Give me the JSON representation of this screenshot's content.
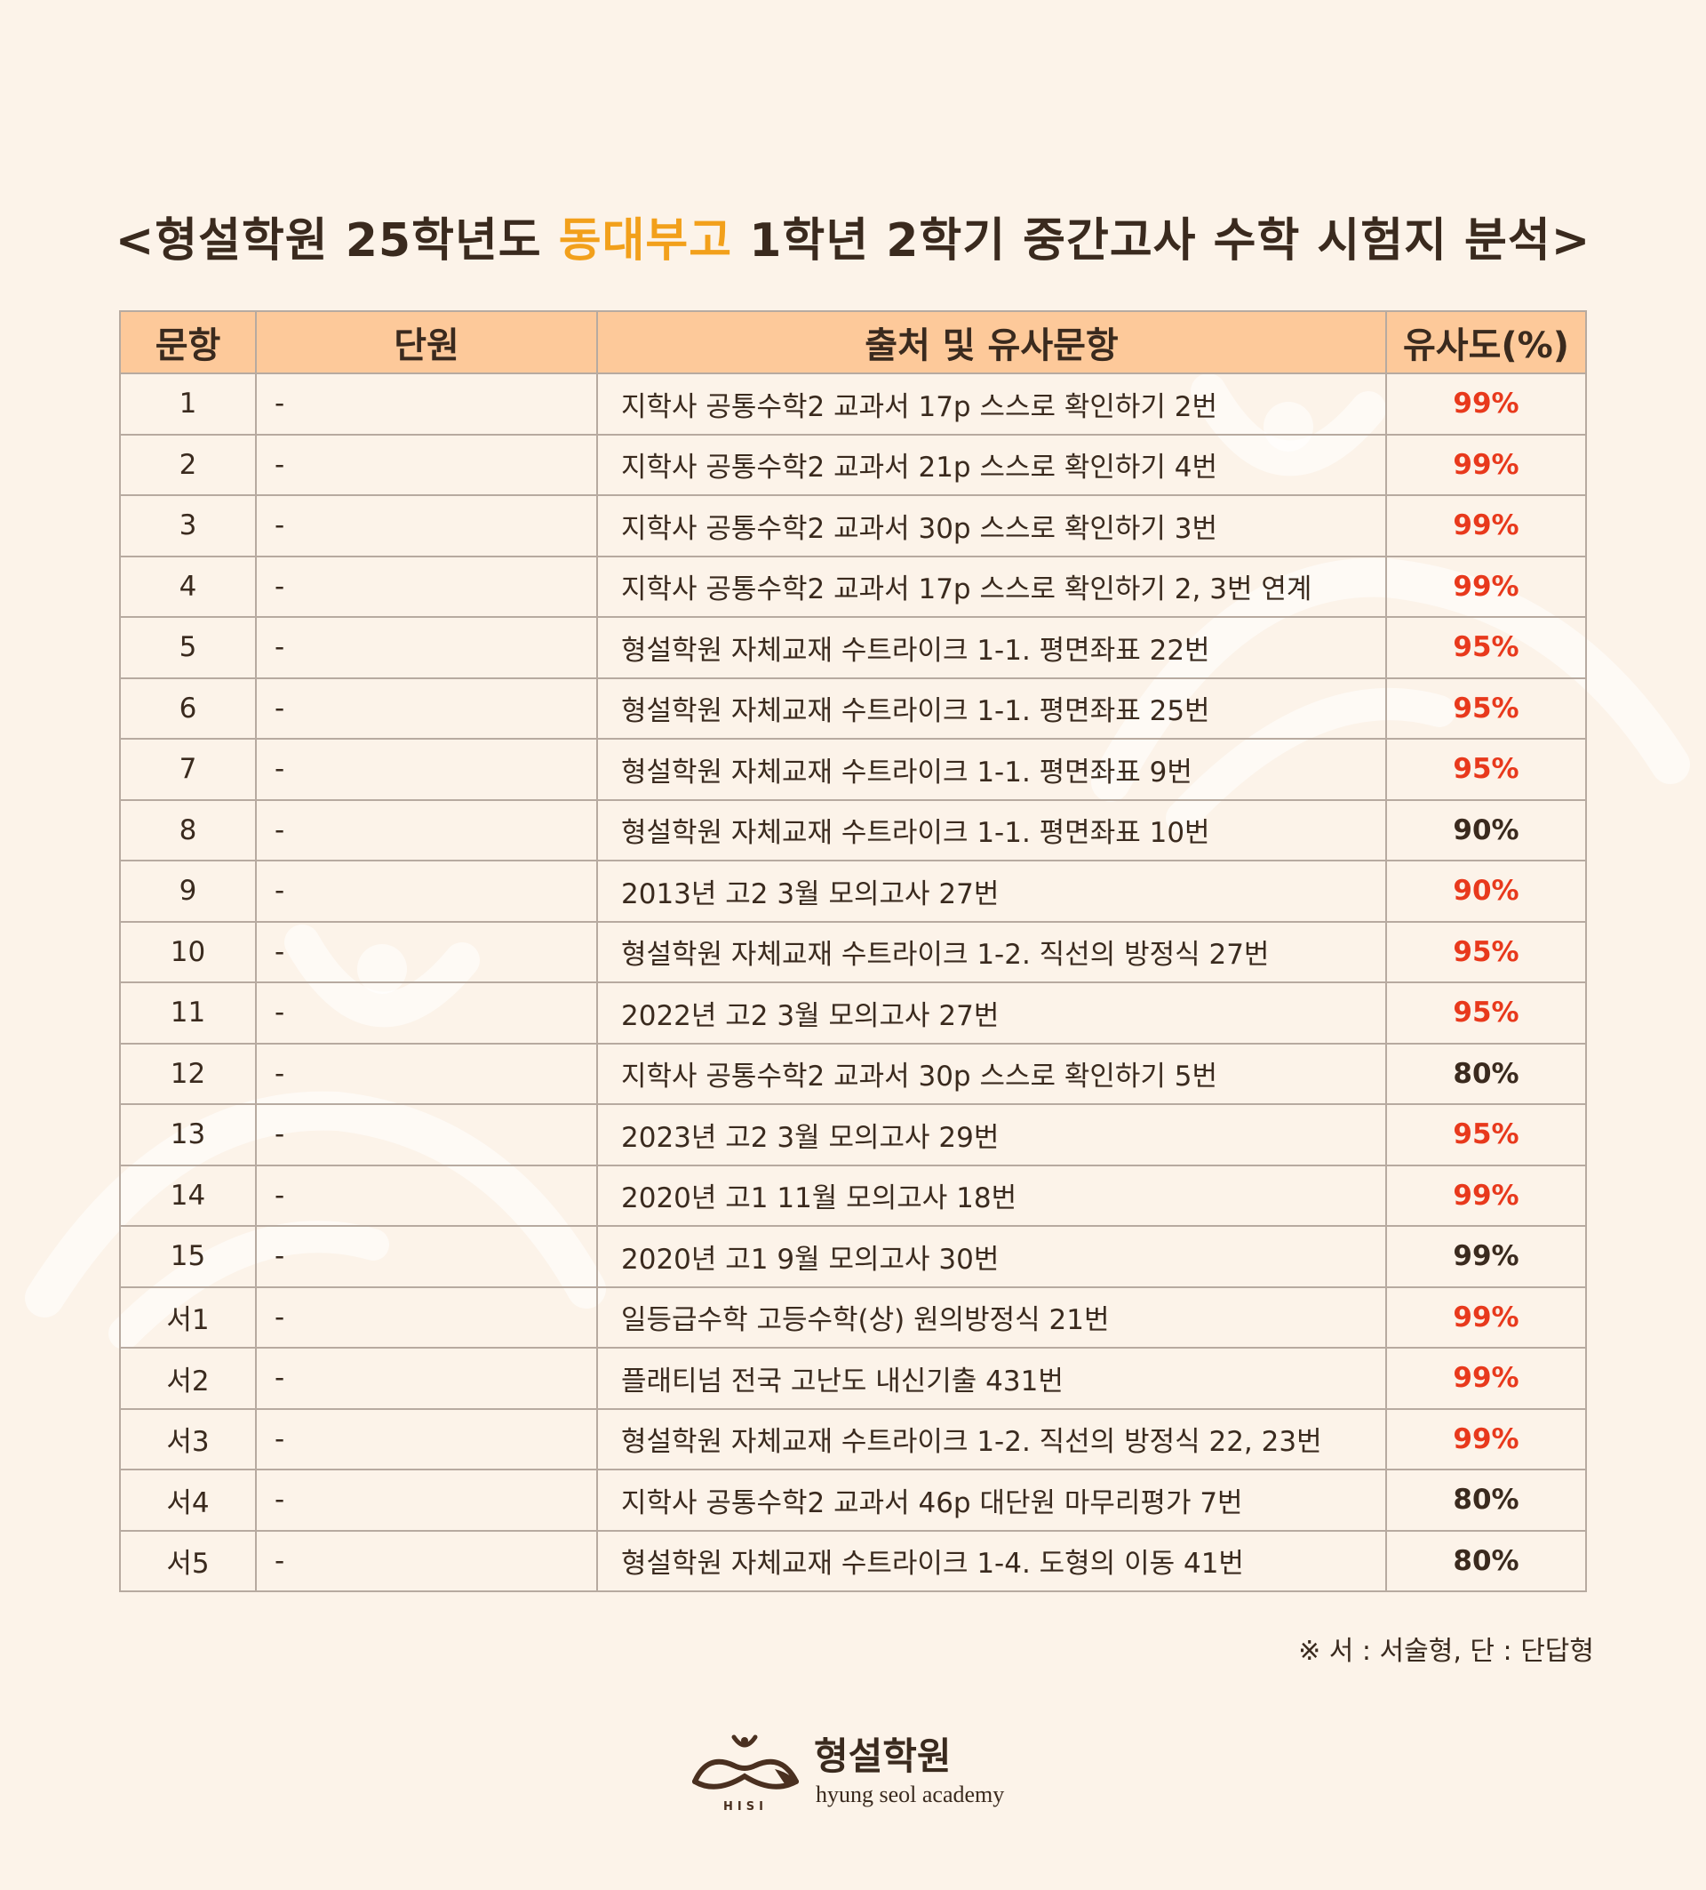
{
  "title": {
    "prefix": "<형설학원 25학년도 ",
    "highlight": "동대부고",
    "suffix": " 1학년 2학기 중간고사 수학 시험지 분석>"
  },
  "table": {
    "headers": [
      "문항",
      "단원",
      "출처 및 유사문항",
      "유사도(%)"
    ],
    "rows": [
      {
        "no": "1",
        "unit": "-",
        "source": "지학사 공통수학2 교과서 17p 스스로 확인하기 2번",
        "similarity": "99%",
        "color": "red"
      },
      {
        "no": "2",
        "unit": "-",
        "source": "지학사 공통수학2 교과서 21p 스스로 확인하기 4번",
        "similarity": "99%",
        "color": "red"
      },
      {
        "no": "3",
        "unit": "-",
        "source": "지학사 공통수학2 교과서 30p 스스로 확인하기 3번",
        "similarity": "99%",
        "color": "red"
      },
      {
        "no": "4",
        "unit": "-",
        "source": "지학사 공통수학2 교과서 17p 스스로 확인하기 2, 3번 연계",
        "similarity": "99%",
        "color": "red"
      },
      {
        "no": "5",
        "unit": "-",
        "source": "형설학원 자체교재 수트라이크 1-1. 평면좌표 22번",
        "similarity": "95%",
        "color": "red"
      },
      {
        "no": "6",
        "unit": "-",
        "source": "형설학원 자체교재 수트라이크 1-1. 평면좌표 25번",
        "similarity": "95%",
        "color": "red"
      },
      {
        "no": "7",
        "unit": "-",
        "source": "형설학원 자체교재 수트라이크 1-1. 평면좌표 9번",
        "similarity": "95%",
        "color": "red"
      },
      {
        "no": "8",
        "unit": "-",
        "source": "형설학원 자체교재 수트라이크 1-1. 평면좌표 10번",
        "similarity": "90%",
        "color": "dark"
      },
      {
        "no": "9",
        "unit": "-",
        "source": "2013년 고2 3월 모의고사 27번",
        "similarity": "90%",
        "color": "red"
      },
      {
        "no": "10",
        "unit": "-",
        "source": "형설학원 자체교재 수트라이크 1-2. 직선의 방정식 27번",
        "similarity": "95%",
        "color": "red"
      },
      {
        "no": "11",
        "unit": "-",
        "source": "2022년 고2 3월 모의고사 27번",
        "similarity": "95%",
        "color": "red"
      },
      {
        "no": "12",
        "unit": "-",
        "source": "지학사 공통수학2 교과서 30p 스스로 확인하기 5번",
        "similarity": "80%",
        "color": "dark"
      },
      {
        "no": "13",
        "unit": "-",
        "source": "2023년 고2 3월 모의고사 29번",
        "similarity": "95%",
        "color": "red"
      },
      {
        "no": "14",
        "unit": "-",
        "source": "2020년 고1 11월 모의고사 18번",
        "similarity": "99%",
        "color": "red"
      },
      {
        "no": "15",
        "unit": "-",
        "source": "2020년 고1 9월 모의고사 30번",
        "similarity": "99%",
        "color": "dark"
      },
      {
        "no": "서1",
        "unit": "-",
        "source": "일등급수학 고등수학(상) 원의방정식 21번",
        "similarity": "99%",
        "color": "red"
      },
      {
        "no": "서2",
        "unit": "-",
        "source": "플래티넘 전국 고난도 내신기출 431번",
        "similarity": "99%",
        "color": "red"
      },
      {
        "no": "서3",
        "unit": "-",
        "source": "형설학원 자체교재 수트라이크 1-2. 직선의 방정식 22, 23번",
        "similarity": "99%",
        "color": "red"
      },
      {
        "no": "서4",
        "unit": "-",
        "source": "지학사 공통수학2 교과서 46p 대단원 마무리평가 7번",
        "similarity": "80%",
        "color": "dark"
      },
      {
        "no": "서5",
        "unit": "-",
        "source": "형설학원 자체교재 수트라이크 1-4. 도형의 이동 41번",
        "similarity": "80%",
        "color": "dark"
      }
    ]
  },
  "note": "※ 서 : 서술형, 단 : 단답형",
  "logo": {
    "name_ko": "형설학원",
    "name_en": "hyung seol academy",
    "mark_text": "HISI"
  },
  "colors": {
    "background": "#fcf3e9",
    "header_bg": "#fdc99a",
    "highlight": "#f2a01b",
    "red": "#e8391c",
    "dark": "#3a2a1e",
    "border": "#b7aaa0"
  }
}
